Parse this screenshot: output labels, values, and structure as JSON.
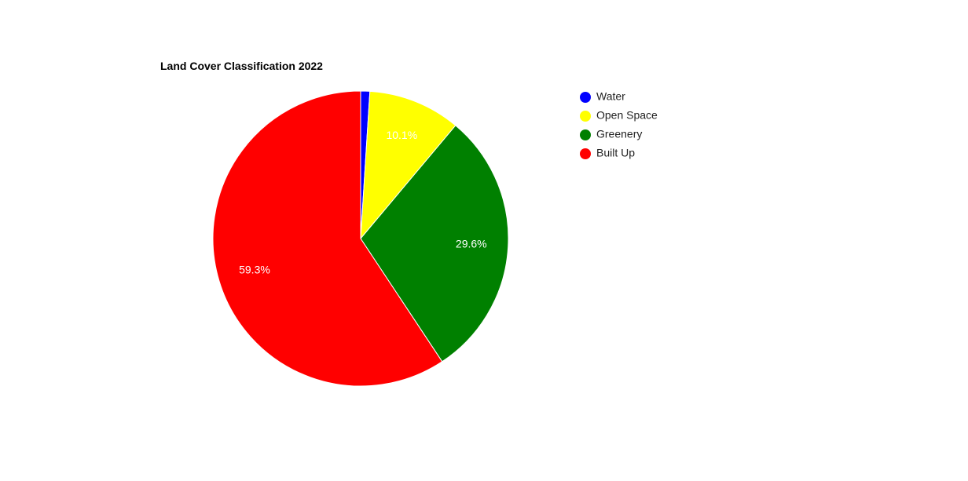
{
  "chart_data": {
    "type": "pie",
    "title": "Land Cover Classification 2022",
    "legend_position": "right",
    "slices": [
      {
        "label": "Water",
        "value": 1.0,
        "display": "",
        "color": "#0000ff"
      },
      {
        "label": "Open Space",
        "value": 10.1,
        "display": "10.1%",
        "color": "#ffff00"
      },
      {
        "label": "Greenery",
        "value": 29.6,
        "display": "29.6%",
        "color": "#008000"
      },
      {
        "label": "Built Up",
        "value": 59.3,
        "display": "59.3%",
        "color": "#ff0000"
      }
    ]
  }
}
